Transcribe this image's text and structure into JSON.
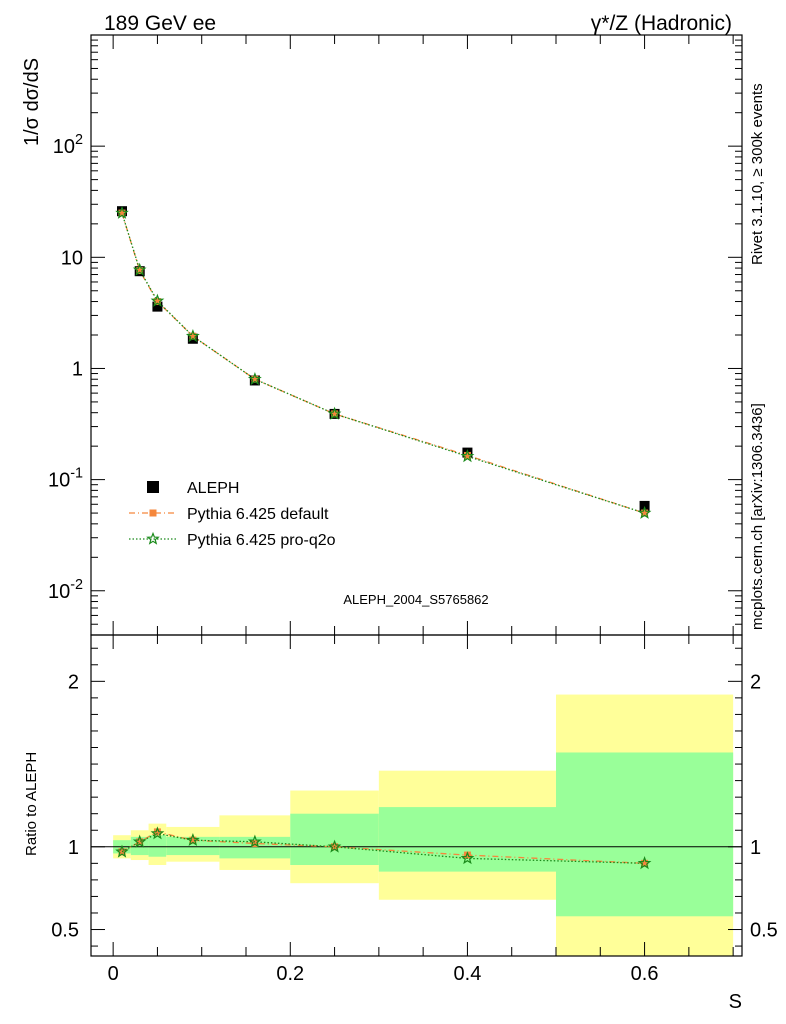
{
  "header": {
    "left_label": "189 GeV ee",
    "right_label": "γ*/Z (Hadronic)"
  },
  "side_text": {
    "rivet": "Rivet 3.1.10, ≥ 300k events",
    "mcplots": "mcplots.cern.ch [arXiv:1306.3436]"
  },
  "watermark": "ALEPH_2004_S5765862",
  "chart_data": [
    {
      "type": "scatter",
      "title": "",
      "ylabel": "1/σ dσ/dS",
      "xlabel": "",
      "yscale": "log",
      "ylim": [
        0.004,
        1000
      ],
      "xlim": [
        -0.025,
        0.71
      ],
      "y_ticks": [
        {
          "value": 0.01,
          "label": "10^-2"
        },
        {
          "value": 0.1,
          "label": "10^-1"
        },
        {
          "value": 1,
          "label": "1"
        },
        {
          "value": 10,
          "label": "10"
        },
        {
          "value": 100,
          "label": "10^2"
        }
      ],
      "legend_position": "bottom-left",
      "series": [
        {
          "name": "ALEPH",
          "marker": "square",
          "color": "#000000",
          "x": [
            0.01,
            0.03,
            0.05,
            0.09,
            0.16,
            0.25,
            0.4,
            0.6
          ],
          "y": [
            26,
            7.5,
            3.6,
            1.85,
            0.78,
            0.39,
            0.175,
            0.058
          ]
        },
        {
          "name": "Pythia 6.425 default",
          "marker": "square-small",
          "line": "dashdot",
          "color": "#f5873c",
          "x": [
            0.01,
            0.03,
            0.05,
            0.09,
            0.16,
            0.25,
            0.4,
            0.6
          ],
          "y": [
            25,
            7.6,
            4.0,
            1.95,
            0.8,
            0.39,
            0.165,
            0.05
          ]
        },
        {
          "name": "Pythia 6.425 pro-q2o",
          "marker": "star",
          "line": "dotted",
          "color": "#1a8a1a",
          "x": [
            0.01,
            0.03,
            0.05,
            0.09,
            0.16,
            0.25,
            0.4,
            0.6
          ],
          "y": [
            25,
            7.7,
            4.05,
            1.95,
            0.8,
            0.39,
            0.162,
            0.05
          ]
        }
      ]
    },
    {
      "type": "scatter",
      "title": "",
      "ylabel": "Ratio to ALEPH",
      "xlabel": "S",
      "ylim": [
        0.34,
        2.28
      ],
      "xlim": [
        -0.025,
        0.71
      ],
      "y_ticks": [
        {
          "value": 0.5,
          "label": "0.5"
        },
        {
          "value": 1,
          "label": "1"
        },
        {
          "value": 2,
          "label": "2"
        }
      ],
      "x_ticks": [
        {
          "value": 0,
          "label": "0"
        },
        {
          "value": 0.2,
          "label": "0.2"
        },
        {
          "value": 0.4,
          "label": "0.4"
        },
        {
          "value": 0.6,
          "label": "0.6"
        }
      ],
      "bands": [
        {
          "x": [
            0.0,
            0.02
          ],
          "yellow": [
            0.93,
            1.07
          ],
          "green": [
            0.96,
            1.04
          ]
        },
        {
          "x": [
            0.02,
            0.04
          ],
          "yellow": [
            0.92,
            1.1
          ],
          "green": [
            0.95,
            1.06
          ]
        },
        {
          "x": [
            0.04,
            0.06
          ],
          "yellow": [
            0.89,
            1.14
          ],
          "green": [
            0.94,
            1.07
          ]
        },
        {
          "x": [
            0.06,
            0.12
          ],
          "yellow": [
            0.91,
            1.12
          ],
          "green": [
            0.95,
            1.06
          ]
        },
        {
          "x": [
            0.12,
            0.2
          ],
          "yellow": [
            0.86,
            1.19
          ],
          "green": [
            0.93,
            1.06
          ]
        },
        {
          "x": [
            0.2,
            0.3
          ],
          "yellow": [
            0.78,
            1.34
          ],
          "green": [
            0.89,
            1.2
          ]
        },
        {
          "x": [
            0.3,
            0.5
          ],
          "yellow": [
            0.68,
            1.46
          ],
          "green": [
            0.85,
            1.24
          ]
        },
        {
          "x": [
            0.5,
            0.7
          ],
          "yellow": [
            0.3,
            1.92
          ],
          "green": [
            0.58,
            1.57
          ]
        }
      ],
      "reference_line": 1,
      "series": [
        {
          "name": "Pythia 6.425 default",
          "color": "#f5873c",
          "x": [
            0.01,
            0.03,
            0.05,
            0.09,
            0.16,
            0.25,
            0.4,
            0.6
          ],
          "y": [
            0.97,
            1.03,
            1.09,
            1.04,
            1.02,
            1.0,
            0.95,
            0.9
          ]
        },
        {
          "name": "Pythia 6.425 pro-q2o",
          "color": "#1a8a1a",
          "x": [
            0.01,
            0.03,
            0.05,
            0.09,
            0.16,
            0.25,
            0.4,
            0.6
          ],
          "y": [
            0.97,
            1.03,
            1.08,
            1.04,
            1.03,
            1.0,
            0.93,
            0.9
          ]
        }
      ]
    }
  ]
}
